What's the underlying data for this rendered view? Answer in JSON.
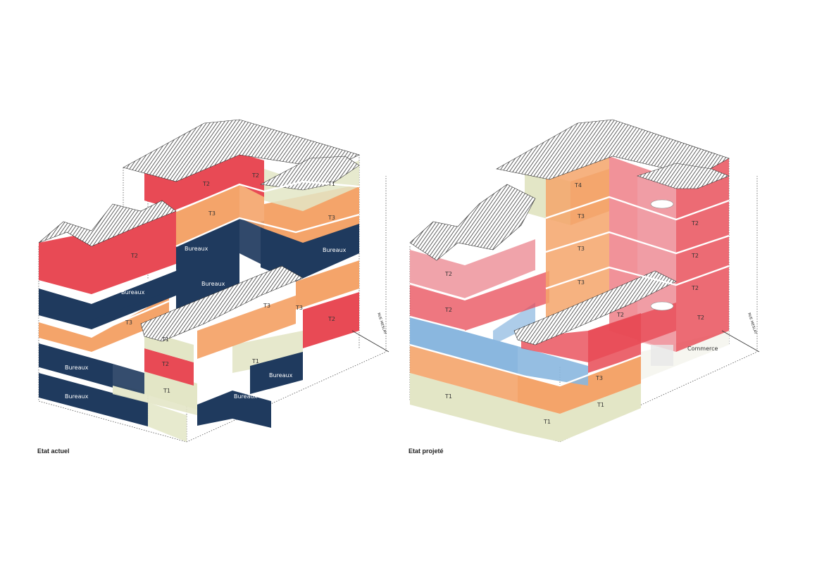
{
  "colors": {
    "navy": "#1f3a5e",
    "orange": "#f4a46a",
    "red": "#e84a55",
    "pink": "#f0a3aa",
    "beige": "#e3e6c6",
    "blue": "#8ab7df",
    "roof": "#333333"
  },
  "left": {
    "caption": "Etat actuel",
    "street": "RUE MESLAY",
    "labels": {
      "t2_a": "T2",
      "t2_b": "T2",
      "t1_top": "T1",
      "t3_top": "T3",
      "t3_right": "T3",
      "bureaux_mid": "Bureaux",
      "bureaux_right": "Bureaux",
      "t2_roof": "T2",
      "bureaux_left": "Bureaux",
      "bureaux_center": "Bureaux",
      "t3_left": "T3",
      "t3_c1": "T3",
      "t3_c2": "T3",
      "t2_far": "T2",
      "t1_court": "T1",
      "t2_court": "T2",
      "t1_ground": "T1",
      "t1_c": "T1",
      "bureaux_g1": "Bureaux",
      "bureaux_g2": "Bureaux",
      "bureaux_g3": "Bureaux",
      "bureaux_g4": "Bureaux"
    }
  },
  "right": {
    "caption": "Etat projeté",
    "street": "RUE MESLAY",
    "labels": {
      "t4": "T4",
      "t3_a": "T3",
      "t3_b": "T3",
      "t3_c": "T3",
      "t2_r1": "T2",
      "t2_r2": "T2",
      "t2_r3": "T2",
      "t2_r4": "T2",
      "t2_l1": "T2",
      "t2_l2": "T2",
      "t2_c": "T2",
      "commerce": "Commerce",
      "t3_ground": "T3",
      "t1_a": "T1",
      "t1_b": "T1",
      "t1_c": "T1"
    }
  }
}
